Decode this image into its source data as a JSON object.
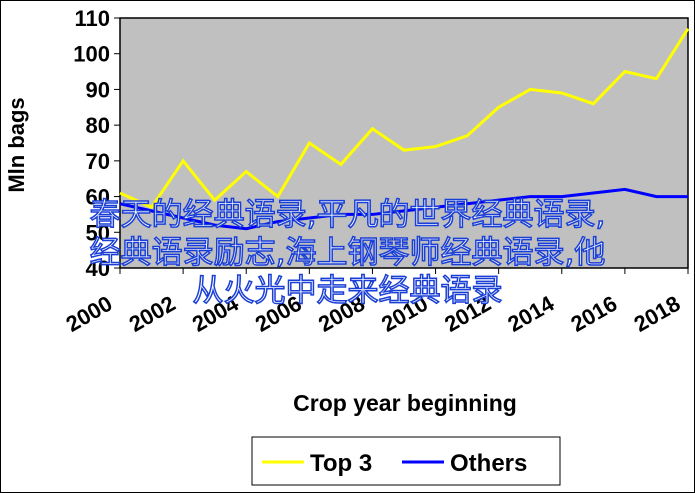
{
  "chart_data": {
    "type": "line",
    "ylabel": "Mln bags",
    "xlabel": "Crop year beginning",
    "x": [
      2000,
      2001,
      2002,
      2003,
      2004,
      2005,
      2006,
      2007,
      2008,
      2009,
      2010,
      2011,
      2012,
      2013,
      2014,
      2015,
      2016,
      2017,
      2018
    ],
    "series": [
      {
        "name": "Top 3",
        "color": "#ffff00",
        "values": [
          61,
          57,
          70,
          59,
          67,
          60,
          75,
          69,
          79,
          73,
          74,
          77,
          85,
          90,
          89,
          86,
          95,
          93,
          107
        ]
      },
      {
        "name": "Others",
        "color": "#0000ff",
        "values": [
          58,
          56,
          54,
          52,
          51,
          53,
          54,
          55,
          55,
          56,
          57,
          58,
          59,
          60,
          60,
          61,
          62,
          60,
          60
        ]
      }
    ],
    "xlim": [
      2000,
      2018
    ],
    "xticks": [
      2000,
      2002,
      2004,
      2006,
      2008,
      2010,
      2012,
      2014,
      2016,
      2018
    ],
    "ylim": [
      40,
      110
    ],
    "yticks": [
      40,
      50,
      60,
      70,
      80,
      90,
      100,
      110
    ],
    "grid": false,
    "legend": "bottom"
  },
  "caption": [
    "春天的经典语录,平凡的世界经典语录,",
    "经典语录励志,海上钢琴师经典语录,他",
    "从火光中走来经典语录"
  ]
}
